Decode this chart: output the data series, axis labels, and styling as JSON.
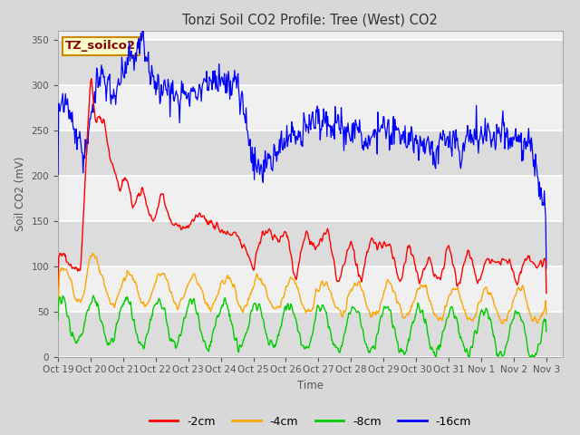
{
  "title": "Tonzi Soil CO2 Profile: Tree (West) CO2",
  "ylabel": "Soil CO2 (mV)",
  "xlabel": "Time",
  "watermark": "TZ_soilco2",
  "ylim": [
    0,
    360
  ],
  "yticks": [
    0,
    50,
    100,
    150,
    200,
    250,
    300,
    350
  ],
  "xtick_labels": [
    "Oct 19",
    "Oct 20",
    "Oct 21",
    "Oct 22",
    "Oct 23",
    "Oct 24",
    "Oct 25",
    "Oct 26",
    "Oct 27",
    "Oct 28",
    "Oct 29",
    "Oct 30",
    "Oct 31",
    "Nov 1",
    "Nov 2",
    "Nov 3"
  ],
  "colors": {
    "2cm": "#ff0000",
    "4cm": "#ffa500",
    "8cm": "#00cc00",
    "16cm": "#0000ff"
  },
  "bg_color": "#d8d8d8",
  "plot_bg_light": "#f0f0f0",
  "plot_bg_dark": "#dcdcdc",
  "grid_color": "#ffffff",
  "watermark_color": "#8b0000",
  "watermark_bg": "#ffffcc",
  "watermark_border": "#cc8800",
  "title_color": "#333333",
  "axis_color": "#555555"
}
